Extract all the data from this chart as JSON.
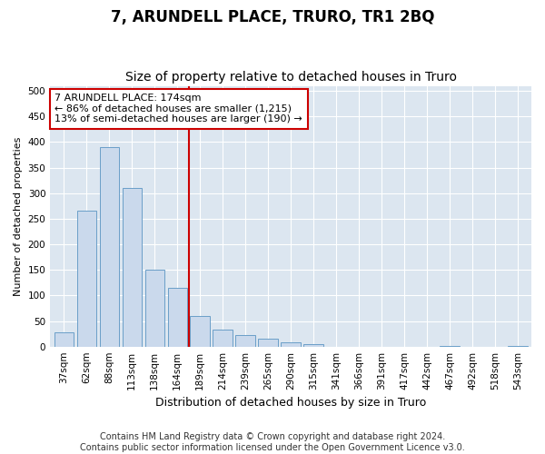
{
  "title": "7, ARUNDELL PLACE, TRURO, TR1 2BQ",
  "subtitle": "Size of property relative to detached houses in Truro",
  "xlabel": "Distribution of detached houses by size in Truro",
  "ylabel": "Number of detached properties",
  "categories": [
    "37sqm",
    "62sqm",
    "88sqm",
    "113sqm",
    "138sqm",
    "164sqm",
    "189sqm",
    "214sqm",
    "239sqm",
    "265sqm",
    "290sqm",
    "315sqm",
    "341sqm",
    "366sqm",
    "391sqm",
    "417sqm",
    "442sqm",
    "467sqm",
    "492sqm",
    "518sqm",
    "543sqm"
  ],
  "values": [
    28,
    265,
    390,
    310,
    150,
    115,
    60,
    33,
    23,
    15,
    8,
    5,
    0,
    0,
    0,
    0,
    0,
    2,
    0,
    0,
    2
  ],
  "bar_color": "#cad9ec",
  "bar_edge_color": "#6a9ec8",
  "vline_x": 5.5,
  "vline_color": "#cc0000",
  "annotation_text": "7 ARUNDELL PLACE: 174sqm\n← 86% of detached houses are smaller (1,215)\n13% of semi-detached houses are larger (190) →",
  "annotation_box_color": "#ffffff",
  "annotation_box_edge_color": "#cc0000",
  "ylim": [
    0,
    510
  ],
  "yticks": [
    0,
    50,
    100,
    150,
    200,
    250,
    300,
    350,
    400,
    450,
    500
  ],
  "footnote": "Contains HM Land Registry data © Crown copyright and database right 2024.\nContains public sector information licensed under the Open Government Licence v3.0.",
  "fig_bg_color": "#ffffff",
  "plot_bg_color": "#dce6f0",
  "grid_color": "#ffffff",
  "title_fontsize": 12,
  "subtitle_fontsize": 10,
  "footnote_fontsize": 7,
  "ylabel_fontsize": 8,
  "xlabel_fontsize": 9,
  "tick_fontsize": 7.5
}
